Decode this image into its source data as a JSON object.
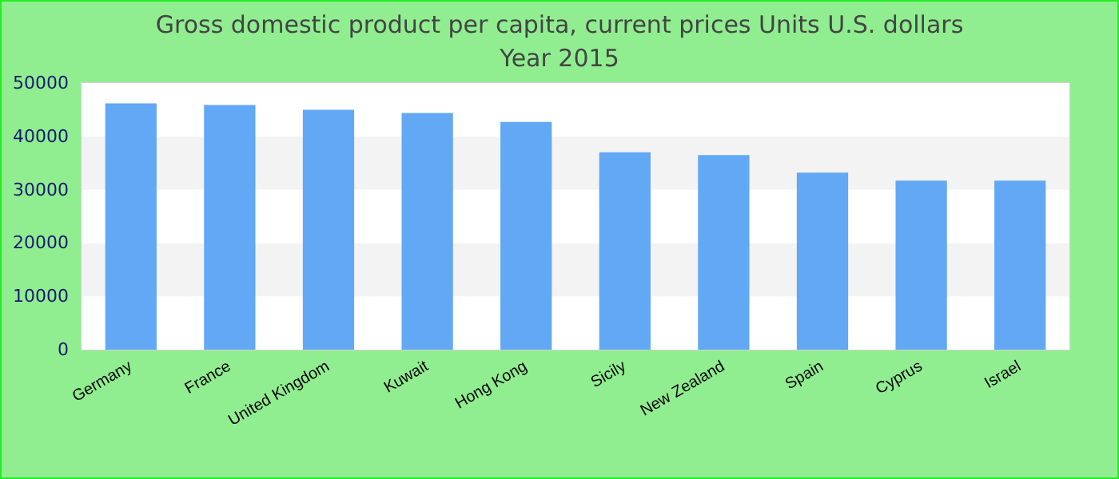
{
  "chart_data": {
    "type": "bar",
    "title": "Gross domestic product per capita, current prices Units U.S. dollars",
    "subtitle": "Year 2015",
    "categories": [
      "Germany",
      "France",
      "United Kingdom",
      "Kuwait",
      "Hong Kong",
      "Sicily",
      "New Zealand",
      "Spain",
      "Cyprus",
      "Israel"
    ],
    "values": [
      46200,
      45900,
      45000,
      44400,
      42700,
      37000,
      36500,
      33200,
      31700,
      31700
    ],
    "color": "#62a8f4",
    "ylim": [
      0,
      50000
    ],
    "yticks": [
      0,
      10000,
      20000,
      30000,
      40000,
      50000
    ],
    "legend": false
  }
}
